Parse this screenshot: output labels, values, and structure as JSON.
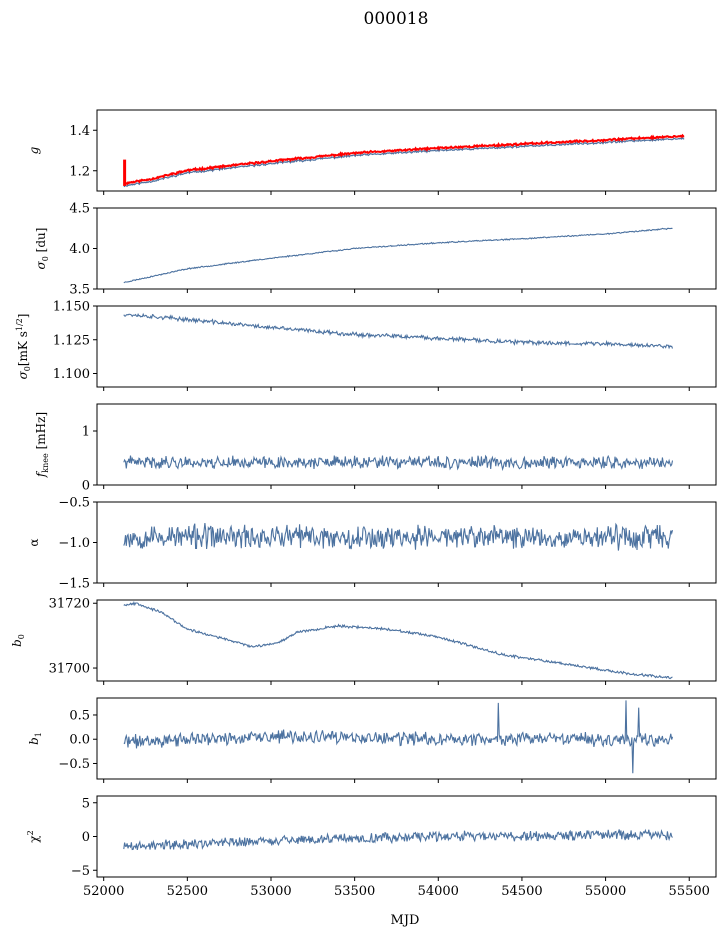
{
  "figure": {
    "title": "000018",
    "xlabel": "MJD",
    "xlim": [
      51960,
      55660
    ],
    "xticks": [
      52000,
      52500,
      53000,
      53500,
      54000,
      54500,
      55000,
      55500
    ],
    "xticklabels": [
      "52000",
      "52500",
      "53000",
      "53500",
      "54000",
      "54500",
      "55000",
      "55500"
    ],
    "series_color": "#4c72a0",
    "highlight_color": "#ff0000"
  },
  "chart_data": [
    {
      "type": "line",
      "ylabel": "g",
      "ylim": [
        1.1,
        1.5
      ],
      "yticks": [
        1.2,
        1.4
      ],
      "yticklabels": [
        "1.2",
        "1.4"
      ],
      "x_range": [
        52120,
        55470
      ],
      "trend": [
        [
          52120,
          1.125
        ],
        [
          52300,
          1.15
        ],
        [
          52500,
          1.19
        ],
        [
          53000,
          1.235
        ],
        [
          53500,
          1.275
        ],
        [
          54000,
          1.3
        ],
        [
          54500,
          1.32
        ],
        [
          55000,
          1.34
        ],
        [
          55470,
          1.36
        ]
      ],
      "noise": 0.004,
      "seed": 11,
      "overlay": {
        "color": "#ff0000",
        "offset": 0.012,
        "spike": [
          52125,
          1.125,
          1.255
        ]
      }
    },
    {
      "type": "line",
      "ylabel": "σ0 [du]",
      "ylim": [
        3.5,
        4.5
      ],
      "yticks": [
        3.5,
        4.0,
        4.5
      ],
      "yticklabels": [
        "3.5",
        "4.0",
        "4.5"
      ],
      "x_range": [
        52120,
        55400
      ],
      "trend": [
        [
          52120,
          3.58
        ],
        [
          52500,
          3.75
        ],
        [
          53000,
          3.88
        ],
        [
          53500,
          4.0
        ],
        [
          54000,
          4.07
        ],
        [
          54500,
          4.12
        ],
        [
          55000,
          4.18
        ],
        [
          55400,
          4.25
        ]
      ],
      "noise": 0.006,
      "seed": 23
    },
    {
      "type": "line",
      "ylabel": "σ0[mK s^1/2]",
      "ylim": [
        1.09,
        1.15
      ],
      "yticks": [
        1.1,
        1.125,
        1.15
      ],
      "yticklabels": [
        "1.100",
        "1.125",
        "1.150"
      ],
      "x_range": [
        52120,
        55400
      ],
      "trend": [
        [
          52120,
          1.144
        ],
        [
          52500,
          1.14
        ],
        [
          53000,
          1.134
        ],
        [
          53500,
          1.129
        ],
        [
          54000,
          1.126
        ],
        [
          54500,
          1.123
        ],
        [
          55000,
          1.122
        ],
        [
          55400,
          1.12
        ]
      ],
      "noise": 0.0012,
      "seed": 37
    },
    {
      "type": "line",
      "ylabel": "fknee [mHz]",
      "ylim": [
        0,
        1.5
      ],
      "yticks": [
        0,
        1
      ],
      "yticklabels": [
        "0",
        "1"
      ],
      "x_range": [
        52120,
        55400
      ],
      "trend": [
        [
          52120,
          0.42
        ],
        [
          55400,
          0.41
        ]
      ],
      "noise": 0.09,
      "seed": 41
    },
    {
      "type": "line",
      "ylabel": "α",
      "ylim": [
        -1.5,
        -0.5
      ],
      "yticks": [
        -1.5,
        -1.0,
        -0.5
      ],
      "yticklabels": [
        "−1.5",
        "−1.0",
        "−0.5"
      ],
      "x_range": [
        52120,
        55400
      ],
      "trend": [
        [
          52120,
          -0.93
        ],
        [
          55400,
          -0.93
        ]
      ],
      "noise": 0.12,
      "seed": 53
    },
    {
      "type": "line",
      "ylabel": "b0",
      "ylim": [
        31696,
        31721
      ],
      "yticks": [
        31700,
        31720
      ],
      "yticklabels": [
        "31700",
        "31720"
      ],
      "x_range": [
        52120,
        55400
      ],
      "trend": [
        [
          52120,
          31719.5
        ],
        [
          52200,
          31720
        ],
        [
          52350,
          31717
        ],
        [
          52500,
          31712
        ],
        [
          52900,
          31706.5
        ],
        [
          53050,
          31708
        ],
        [
          53150,
          31711
        ],
        [
          53400,
          31713
        ],
        [
          53700,
          31712
        ],
        [
          54000,
          31709.5
        ],
        [
          54400,
          31704
        ],
        [
          54800,
          31701
        ],
        [
          55100,
          31698.5
        ],
        [
          55400,
          31697
        ]
      ],
      "noise": 0.3,
      "seed": 67
    },
    {
      "type": "line",
      "ylabel": "b1",
      "ylim": [
        -0.82,
        0.85
      ],
      "yticks": [
        -0.5,
        0.0,
        0.5
      ],
      "yticklabels": [
        "−0.5",
        "0.0",
        "0.5"
      ],
      "x_range": [
        52120,
        55400
      ],
      "trend": [
        [
          52120,
          -0.05
        ],
        [
          53000,
          0.05
        ],
        [
          54000,
          0.0
        ],
        [
          55400,
          0.0
        ]
      ],
      "noise": 0.11,
      "seed": 71,
      "spikes": [
        [
          54360,
          0.75
        ],
        [
          55120,
          0.8
        ],
        [
          55160,
          -0.7
        ],
        [
          55200,
          0.65
        ]
      ]
    },
    {
      "type": "line",
      "ylabel": "χ²",
      "ylim": [
        -6,
        6
      ],
      "yticks": [
        -5,
        0,
        5
      ],
      "yticklabels": [
        "−5",
        "0",
        "5"
      ],
      "x_range": [
        52120,
        55400
      ],
      "trend": [
        [
          52120,
          -1.5
        ],
        [
          53000,
          -0.6
        ],
        [
          54000,
          0.0
        ],
        [
          55400,
          0.3
        ]
      ],
      "noise": 0.6,
      "seed": 89
    }
  ]
}
